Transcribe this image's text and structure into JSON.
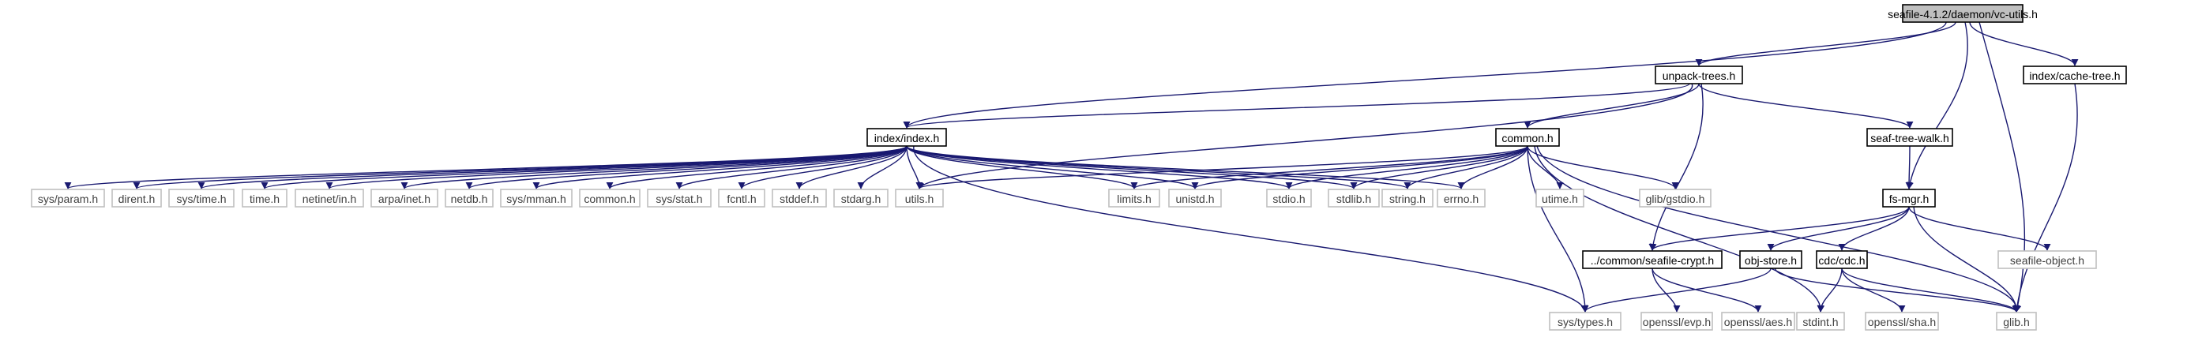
{
  "diagram": {
    "type": "include-dependency-graph",
    "colors": {
      "edge": "#191970",
      "root_fill": "#bfbfbf",
      "root_stroke": "#000000",
      "doc_fill": "#ffffff",
      "doc_stroke": "#000000",
      "ext_fill": "#ffffff",
      "ext_stroke": "#bfbfbf",
      "ext_text": "#404040"
    },
    "nodes": [
      {
        "id": "root",
        "label": "seafile-4.1.2/daemon/vc-utils.h",
        "kind": "root"
      },
      {
        "id": "unpack",
        "label": "unpack-trees.h",
        "kind": "documented"
      },
      {
        "id": "cachetree",
        "label": "index/cache-tree.h",
        "kind": "documented"
      },
      {
        "id": "index",
        "label": "index/index.h",
        "kind": "documented"
      },
      {
        "id": "common",
        "label": "common.h",
        "kind": "documented"
      },
      {
        "id": "seafwalk",
        "label": "seaf-tree-walk.h",
        "kind": "documented"
      },
      {
        "id": "fsmgr",
        "label": "fs-mgr.h",
        "kind": "documented"
      },
      {
        "id": "crypt",
        "label": "../common/seafile-crypt.h",
        "kind": "documented"
      },
      {
        "id": "objstore",
        "label": "obj-store.h",
        "kind": "documented"
      },
      {
        "id": "cdc",
        "label": "cdc/cdc.h",
        "kind": "documented"
      },
      {
        "id": "sysparam",
        "label": "sys/param.h",
        "kind": "external"
      },
      {
        "id": "dirent",
        "label": "dirent.h",
        "kind": "external"
      },
      {
        "id": "systime",
        "label": "sys/time.h",
        "kind": "external"
      },
      {
        "id": "time",
        "label": "time.h",
        "kind": "external"
      },
      {
        "id": "netinet",
        "label": "netinet/in.h",
        "kind": "external"
      },
      {
        "id": "arpa",
        "label": "arpa/inet.h",
        "kind": "external"
      },
      {
        "id": "netdb",
        "label": "netdb.h",
        "kind": "external"
      },
      {
        "id": "sysmman",
        "label": "sys/mman.h",
        "kind": "external"
      },
      {
        "id": "commonext",
        "label": "common.h",
        "kind": "external"
      },
      {
        "id": "sysstat",
        "label": "sys/stat.h",
        "kind": "external"
      },
      {
        "id": "fcntl",
        "label": "fcntl.h",
        "kind": "external"
      },
      {
        "id": "stddef",
        "label": "stddef.h",
        "kind": "external"
      },
      {
        "id": "stdarg",
        "label": "stdarg.h",
        "kind": "external"
      },
      {
        "id": "utils",
        "label": "utils.h",
        "kind": "external"
      },
      {
        "id": "limits",
        "label": "limits.h",
        "kind": "external"
      },
      {
        "id": "unistd",
        "label": "unistd.h",
        "kind": "external"
      },
      {
        "id": "stdio",
        "label": "stdio.h",
        "kind": "external"
      },
      {
        "id": "stdlib",
        "label": "stdlib.h",
        "kind": "external"
      },
      {
        "id": "string",
        "label": "string.h",
        "kind": "external"
      },
      {
        "id": "errno",
        "label": "errno.h",
        "kind": "external"
      },
      {
        "id": "utime",
        "label": "utime.h",
        "kind": "external"
      },
      {
        "id": "gstdio",
        "label": "glib/gstdio.h",
        "kind": "external"
      },
      {
        "id": "seafobj",
        "label": "seafile-object.h",
        "kind": "external"
      },
      {
        "id": "systypes",
        "label": "sys/types.h",
        "kind": "external"
      },
      {
        "id": "evp",
        "label": "openssl/evp.h",
        "kind": "external"
      },
      {
        "id": "aes",
        "label": "openssl/aes.h",
        "kind": "external"
      },
      {
        "id": "stdint",
        "label": "stdint.h",
        "kind": "external"
      },
      {
        "id": "sha",
        "label": "openssl/sha.h",
        "kind": "external"
      },
      {
        "id": "glib",
        "label": "glib.h",
        "kind": "external"
      }
    ],
    "edges": [
      [
        "root",
        "unpack"
      ],
      [
        "root",
        "index"
      ],
      [
        "root",
        "cachetree"
      ],
      [
        "root",
        "fsmgr"
      ],
      [
        "root",
        "glib"
      ],
      [
        "unpack",
        "index"
      ],
      [
        "unpack",
        "common"
      ],
      [
        "unpack",
        "seafwalk"
      ],
      [
        "unpack",
        "utils"
      ],
      [
        "unpack",
        "crypt"
      ],
      [
        "cachetree",
        "glib"
      ],
      [
        "index",
        "sysparam"
      ],
      [
        "index",
        "dirent"
      ],
      [
        "index",
        "systime"
      ],
      [
        "index",
        "time"
      ],
      [
        "index",
        "netinet"
      ],
      [
        "index",
        "arpa"
      ],
      [
        "index",
        "netdb"
      ],
      [
        "index",
        "sysmman"
      ],
      [
        "index",
        "commonext"
      ],
      [
        "index",
        "sysstat"
      ],
      [
        "index",
        "fcntl"
      ],
      [
        "index",
        "stddef"
      ],
      [
        "index",
        "stdarg"
      ],
      [
        "index",
        "utils"
      ],
      [
        "index",
        "limits"
      ],
      [
        "index",
        "unistd"
      ],
      [
        "index",
        "stdio"
      ],
      [
        "index",
        "stdlib"
      ],
      [
        "index",
        "string"
      ],
      [
        "index",
        "errno"
      ],
      [
        "index",
        "systypes"
      ],
      [
        "common",
        "utils"
      ],
      [
        "common",
        "limits"
      ],
      [
        "common",
        "unistd"
      ],
      [
        "common",
        "stdio"
      ],
      [
        "common",
        "stdlib"
      ],
      [
        "common",
        "string"
      ],
      [
        "common",
        "errno"
      ],
      [
        "common",
        "utime"
      ],
      [
        "common",
        "gstdio"
      ],
      [
        "common",
        "systypes"
      ],
      [
        "common",
        "stdint"
      ],
      [
        "common",
        "glib"
      ],
      [
        "seafwalk",
        "fsmgr"
      ],
      [
        "fsmgr",
        "crypt"
      ],
      [
        "fsmgr",
        "objstore"
      ],
      [
        "fsmgr",
        "cdc"
      ],
      [
        "fsmgr",
        "seafobj"
      ],
      [
        "fsmgr",
        "glib"
      ],
      [
        "crypt",
        "evp"
      ],
      [
        "crypt",
        "aes"
      ],
      [
        "objstore",
        "systypes"
      ],
      [
        "objstore",
        "glib"
      ],
      [
        "cdc",
        "stdint"
      ],
      [
        "cdc",
        "sha"
      ],
      [
        "cdc",
        "glib"
      ]
    ]
  }
}
